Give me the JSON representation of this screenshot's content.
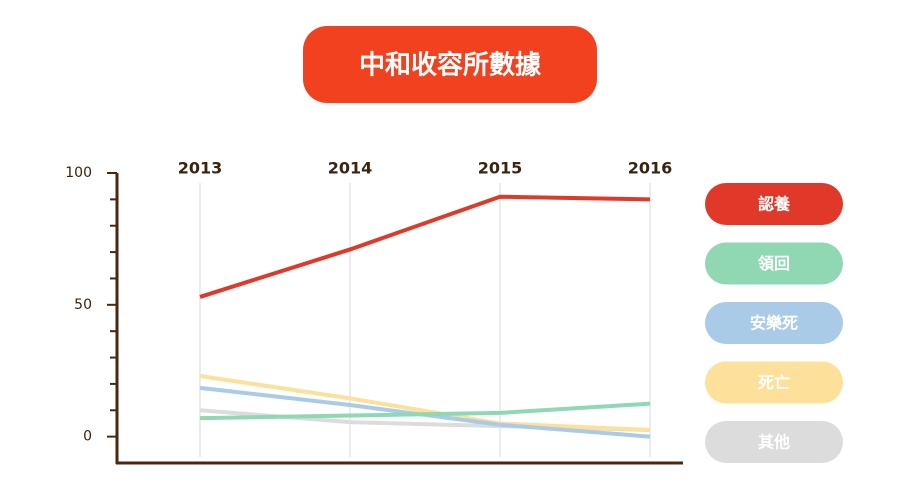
{
  "chart_data": {
    "type": "line",
    "title": "中和收容所數據",
    "categories": [
      "2013",
      "2014",
      "2015",
      "2016"
    ],
    "series": [
      {
        "name": "認養",
        "color": "#e0392a",
        "values": [
          53,
          71,
          91,
          90
        ]
      },
      {
        "name": "領回",
        "color": "#8fd8b3",
        "values": [
          7,
          8,
          9,
          12.5
        ]
      },
      {
        "name": "安樂死",
        "color": "#a9cbe7",
        "values": [
          18.5,
          12,
          4.5,
          0
        ]
      },
      {
        "name": "死亡",
        "color": "#fde19b",
        "values": [
          23,
          14.5,
          5,
          2.5
        ]
      },
      {
        "name": "其他",
        "color": "#dcdcdc",
        "values": [
          10,
          5.5,
          4,
          2.5
        ]
      }
    ],
    "ylim": [
      -10,
      100
    ],
    "yticks": [
      0,
      50,
      100
    ],
    "minor_yticks": [
      10,
      20,
      30,
      40,
      60,
      70,
      80,
      90
    ],
    "grid": true,
    "legend": "right"
  }
}
